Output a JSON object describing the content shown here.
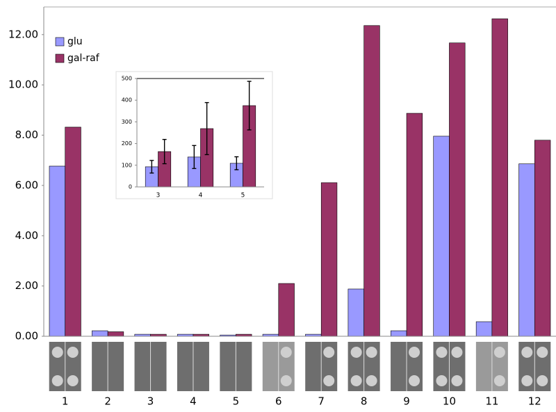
{
  "chart_data": [
    {
      "type": "bar",
      "categories": [
        "1",
        "2",
        "3",
        "4",
        "5",
        "6",
        "7",
        "8",
        "9",
        "10",
        "11",
        "12"
      ],
      "series": [
        {
          "name": "glu",
          "color": "#9999ff",
          "values": [
            6.77,
            0.22,
            0.08,
            0.08,
            0.05,
            0.08,
            0.08,
            1.88,
            0.22,
            7.96,
            0.58,
            6.86
          ]
        },
        {
          "name": "gal-raf",
          "color": "#993366",
          "values": [
            8.32,
            0.18,
            0.08,
            0.08,
            0.08,
            2.1,
            6.11,
            12.36,
            8.87,
            11.67,
            12.63,
            7.8
          ]
        }
      ],
      "ylim": [
        0,
        13.1
      ],
      "yticks": [
        {
          "value": 0,
          "label": "0.00"
        },
        {
          "value": 2,
          "label": "2.00"
        },
        {
          "value": 4,
          "label": "4.00"
        },
        {
          "value": 6,
          "label": "6.00"
        },
        {
          "value": 8,
          "label": "8.00"
        },
        {
          "value": 10,
          "label": "10.00"
        },
        {
          "value": 12,
          "label": "12.00"
        }
      ],
      "legend": "top-left"
    },
    {
      "type": "bar",
      "categories": [
        "3",
        "4",
        "5"
      ],
      "series": [
        {
          "name": "glu",
          "color": "#9999ff",
          "values": [
            93,
            138,
            109
          ],
          "errors": [
            29,
            53,
            30
          ]
        },
        {
          "name": "gal-raf",
          "color": "#993366",
          "values": [
            163,
            269,
            375
          ],
          "errors": [
            56,
            120,
            112
          ]
        }
      ],
      "ylim": [
        0,
        500
      ],
      "yticks": [
        0,
        100,
        200,
        300,
        400,
        500
      ]
    }
  ]
}
